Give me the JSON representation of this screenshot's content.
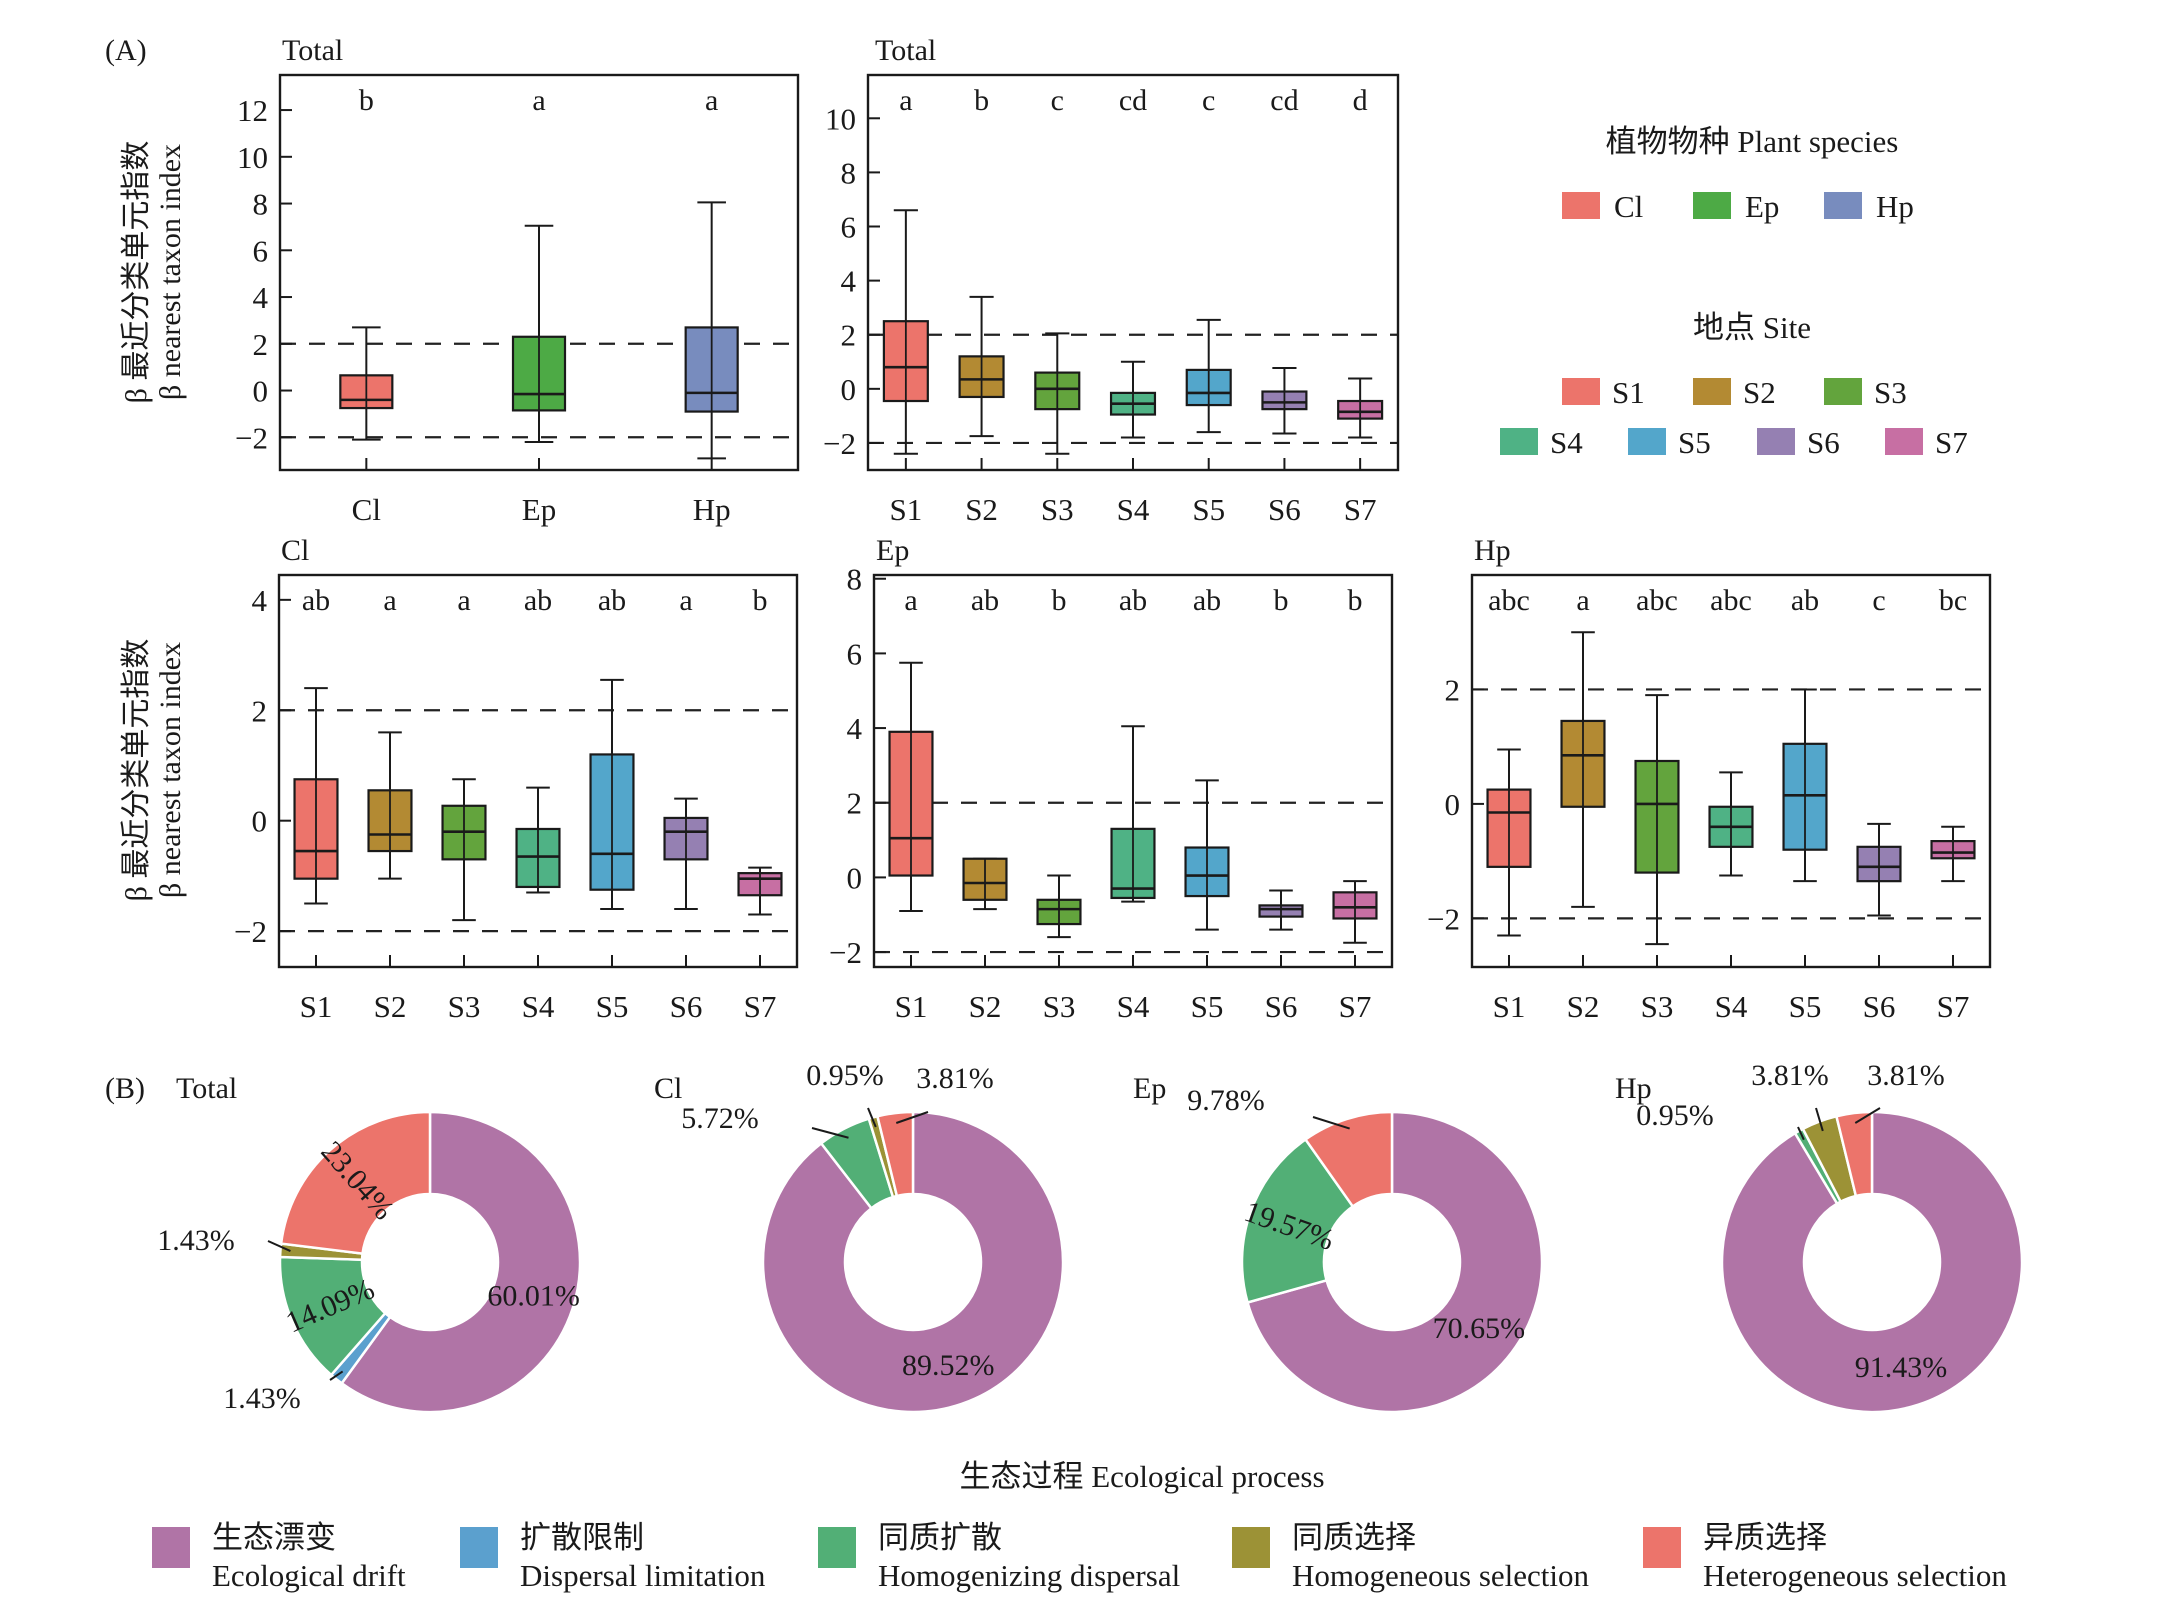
{
  "figure": {
    "panel_a_label": "(A)",
    "panel_b_label": "(B)",
    "y_axis_label_cn": "β 最近分类单元指数",
    "y_axis_label_en": "β nearest taxon index",
    "threshold_lines": [
      2,
      -2
    ]
  },
  "colors": {
    "species": {
      "Cl": "#EC746B",
      "Ep": "#4DAA45",
      "Hp": "#788CBE"
    },
    "sites": {
      "S1": "#EC746B",
      "S2": "#B38A33",
      "S3": "#63A43D",
      "S4": "#4FB285",
      "S5": "#53A6CB",
      "S6": "#9580B2",
      "S7": "#C76FA3"
    },
    "processes": {
      "Ecological drift": "#B074A6",
      "Dispersal limitation": "#5BA0CE",
      "Homogenizing dispersal": "#52AF76",
      "Homogeneous selection": "#9C9236",
      "Heterogeneous selection": "#EC746B"
    }
  },
  "legends": {
    "species": {
      "title": "植物物种 Plant species",
      "items": [
        "Cl",
        "Ep",
        "Hp"
      ]
    },
    "site": {
      "title": "地点 Site",
      "items": [
        "S1",
        "S2",
        "S3",
        "S4",
        "S5",
        "S6",
        "S7"
      ]
    },
    "process": {
      "title": "生态过程 Ecological process",
      "items": [
        {
          "cn": "生态漂变",
          "en": "Ecological drift"
        },
        {
          "cn": "扩散限制",
          "en": "Dispersal limitation"
        },
        {
          "cn": "同质扩散",
          "en": "Homogenizing dispersal"
        },
        {
          "cn": "同质选择",
          "en": "Homogeneous selection"
        },
        {
          "cn": "异质选择",
          "en": "Heterogeneous selection"
        }
      ]
    }
  },
  "chart_data": [
    {
      "type": "box",
      "title": "Total",
      "ylabel": "β 最近分类单元指数 / β nearest taxon index",
      "ylim": [
        -3.4,
        13.5
      ],
      "yticks": [
        -2,
        0,
        2,
        4,
        6,
        8,
        10,
        12
      ],
      "color_key": "species",
      "categories": [
        "Cl",
        "Ep",
        "Hp"
      ],
      "letters": [
        "b",
        "a",
        "a"
      ],
      "boxes": [
        {
          "min": -2.1,
          "q1": -0.75,
          "median": -0.4,
          "q3": 0.65,
          "max": 2.7
        },
        {
          "min": -2.2,
          "q1": -0.85,
          "median": -0.15,
          "q3": 2.3,
          "max": 7.05
        },
        {
          "min": -2.9,
          "q1": -0.9,
          "median": -0.1,
          "q3": 2.7,
          "max": 8.05
        }
      ]
    },
    {
      "type": "box",
      "title": "Total",
      "ylim": [
        -3.0,
        11.6
      ],
      "yticks": [
        -2,
        0,
        2,
        4,
        6,
        8,
        10
      ],
      "color_key": "sites",
      "categories": [
        "S1",
        "S2",
        "S3",
        "S4",
        "S5",
        "S6",
        "S7"
      ],
      "letters": [
        "a",
        "b",
        "c",
        "cd",
        "c",
        "cd",
        "d"
      ],
      "boxes": [
        {
          "min": -2.4,
          "q1": -0.45,
          "median": 0.8,
          "q3": 2.5,
          "max": 6.6
        },
        {
          "min": -1.75,
          "q1": -0.3,
          "median": 0.35,
          "q3": 1.2,
          "max": 3.4
        },
        {
          "min": -2.4,
          "q1": -0.75,
          "median": 0.0,
          "q3": 0.6,
          "max": 2.05
        },
        {
          "min": -1.8,
          "q1": -0.95,
          "median": -0.55,
          "q3": -0.15,
          "max": 1.0
        },
        {
          "min": -1.6,
          "q1": -0.6,
          "median": -0.15,
          "q3": 0.7,
          "max": 2.55
        },
        {
          "min": -1.65,
          "q1": -0.75,
          "median": -0.5,
          "q3": -0.1,
          "max": 0.77
        },
        {
          "min": -1.8,
          "q1": -1.1,
          "median": -0.85,
          "q3": -0.45,
          "max": 0.38
        }
      ]
    },
    {
      "type": "box",
      "title": "Cl",
      "ylabel": "β 最近分类单元指数 / β nearest taxon index",
      "ylim": [
        -2.65,
        4.45
      ],
      "yticks": [
        -2,
        0,
        2,
        4
      ],
      "color_key": "sites",
      "categories": [
        "S1",
        "S2",
        "S3",
        "S4",
        "S5",
        "S6",
        "S7"
      ],
      "letters": [
        "ab",
        "a",
        "a",
        "ab",
        "ab",
        "a",
        "b"
      ],
      "boxes": [
        {
          "min": -1.5,
          "q1": -1.05,
          "median": -0.55,
          "q3": 0.75,
          "max": 2.4
        },
        {
          "min": -1.05,
          "q1": -0.55,
          "median": -0.25,
          "q3": 0.55,
          "max": 1.6
        },
        {
          "min": -1.8,
          "q1": -0.7,
          "median": -0.2,
          "q3": 0.27,
          "max": 0.75
        },
        {
          "min": -1.3,
          "q1": -1.2,
          "median": -0.65,
          "q3": -0.15,
          "max": 0.6
        },
        {
          "min": -1.6,
          "q1": -1.25,
          "median": -0.6,
          "q3": 1.2,
          "max": 2.55
        },
        {
          "min": -1.6,
          "q1": -0.7,
          "median": -0.2,
          "q3": 0.05,
          "max": 0.4
        },
        {
          "min": -1.7,
          "q1": -1.35,
          "median": -1.05,
          "q3": -0.95,
          "max": -0.85
        }
      ]
    },
    {
      "type": "box",
      "title": "Ep",
      "ylim": [
        -2.4,
        8.1
      ],
      "yticks": [
        -2,
        0,
        2,
        4,
        6,
        8
      ],
      "color_key": "sites",
      "categories": [
        "S1",
        "S2",
        "S3",
        "S4",
        "S5",
        "S6",
        "S7"
      ],
      "letters": [
        "a",
        "ab",
        "b",
        "ab",
        "ab",
        "b",
        "b"
      ],
      "boxes": [
        {
          "min": -0.9,
          "q1": 0.05,
          "median": 1.05,
          "q3": 3.9,
          "max": 5.75
        },
        {
          "min": -0.85,
          "q1": -0.6,
          "median": -0.15,
          "q3": 0.5,
          "max": 0.5
        },
        {
          "min": -1.6,
          "q1": -1.25,
          "median": -0.85,
          "q3": -0.6,
          "max": 0.05
        },
        {
          "min": -0.65,
          "q1": -0.55,
          "median": -0.3,
          "q3": 1.3,
          "max": 4.05
        },
        {
          "min": -1.4,
          "q1": -0.5,
          "median": 0.05,
          "q3": 0.8,
          "max": 2.6
        },
        {
          "min": -1.4,
          "q1": -1.05,
          "median": -0.85,
          "q3": -0.75,
          "max": -0.35
        },
        {
          "min": -1.75,
          "q1": -1.1,
          "median": -0.8,
          "q3": -0.4,
          "max": -0.1
        }
      ]
    },
    {
      "type": "box",
      "title": "Hp",
      "ylim": [
        -2.85,
        4.0
      ],
      "yticks": [
        -2,
        0,
        2
      ],
      "color_key": "sites",
      "categories": [
        "S1",
        "S2",
        "S3",
        "S4",
        "S5",
        "S6",
        "S7"
      ],
      "letters": [
        "abc",
        "a",
        "abc",
        "abc",
        "ab",
        "c",
        "bc"
      ],
      "boxes": [
        {
          "min": -2.3,
          "q1": -1.1,
          "median": -0.15,
          "q3": 0.25,
          "max": 0.95
        },
        {
          "min": -1.8,
          "q1": -0.05,
          "median": 0.85,
          "q3": 1.45,
          "max": 3.0
        },
        {
          "min": -2.45,
          "q1": -1.2,
          "median": 0.0,
          "q3": 0.75,
          "max": 1.9
        },
        {
          "min": -1.25,
          "q1": -0.75,
          "median": -0.4,
          "q3": -0.05,
          "max": 0.55
        },
        {
          "min": -1.35,
          "q1": -0.8,
          "median": 0.15,
          "q3": 1.05,
          "max": 2.0
        },
        {
          "min": -1.95,
          "q1": -1.35,
          "median": -1.1,
          "q3": -0.75,
          "max": -0.35
        },
        {
          "min": -1.35,
          "q1": -0.95,
          "median": -0.85,
          "q3": -0.65,
          "max": -0.4
        }
      ]
    },
    {
      "type": "pie",
      "donut": true,
      "title": "Total",
      "slices": [
        {
          "label": "Ecological drift",
          "value": 60.01,
          "text": "60.01%"
        },
        {
          "label": "Dispersal limitation",
          "value": 1.43,
          "text": "1.43%"
        },
        {
          "label": "Homogenizing dispersal",
          "value": 14.09,
          "text": "14.09%"
        },
        {
          "label": "Homogeneous selection",
          "value": 1.43,
          "text": "1.43%"
        },
        {
          "label": "Heterogeneous selection",
          "value": 23.04,
          "text": "23.04%"
        }
      ]
    },
    {
      "type": "pie",
      "donut": true,
      "title": "Cl",
      "slices": [
        {
          "label": "Ecological drift",
          "value": 89.52,
          "text": "89.52%"
        },
        {
          "label": "Homogenizing dispersal",
          "value": 5.72,
          "text": "5.72%"
        },
        {
          "label": "Homogeneous selection",
          "value": 0.95,
          "text": "0.95%"
        },
        {
          "label": "Heterogeneous selection",
          "value": 3.81,
          "text": "3.81%"
        }
      ]
    },
    {
      "type": "pie",
      "donut": true,
      "title": "Ep",
      "slices": [
        {
          "label": "Ecological drift",
          "value": 70.65,
          "text": "70.65%"
        },
        {
          "label": "Homogenizing dispersal",
          "value": 19.57,
          "text": "19.57%"
        },
        {
          "label": "Heterogeneous selection",
          "value": 9.78,
          "text": "9.78%"
        }
      ]
    },
    {
      "type": "pie",
      "donut": true,
      "title": "Hp",
      "slices": [
        {
          "label": "Ecological drift",
          "value": 91.43,
          "text": "91.43%"
        },
        {
          "label": "Homogenizing dispersal",
          "value": 0.95,
          "text": "0.95%"
        },
        {
          "label": "Homogeneous selection",
          "value": 3.81,
          "text": "3.81%"
        },
        {
          "label": "Heterogeneous selection",
          "value": 3.81,
          "text": "3.81%"
        }
      ]
    }
  ]
}
